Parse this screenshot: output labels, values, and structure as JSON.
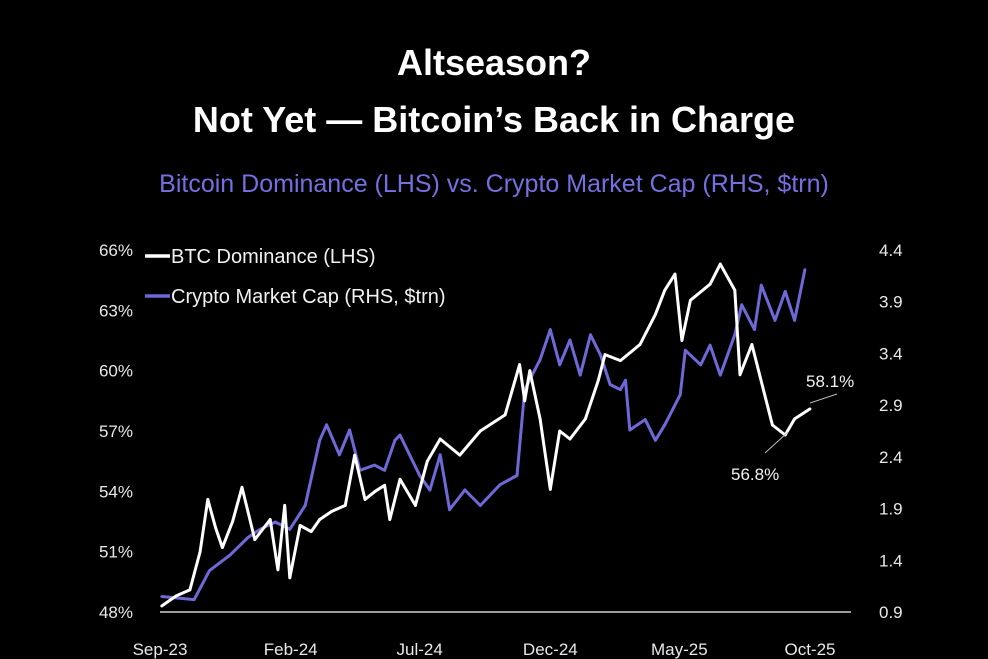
{
  "title_line1": "Altseason?",
  "title_line2": "Not Yet — Bitcoin’s Back in Charge",
  "chart_data": {
    "type": "line",
    "title": "Altseason? Not Yet — Bitcoin’s Back in Charge",
    "subtitle": "Bitcoin Dominance (LHS) vs. Crypto Market Cap (RHS, $trn)",
    "x_ticks": [
      "Sep-23",
      "Feb-24",
      "Jul-24",
      "Dec-24",
      "May-25",
      "Oct-25"
    ],
    "y_left_ticks": [
      "48%",
      "51%",
      "54%",
      "57%",
      "60%",
      "63%",
      "66%"
    ],
    "y_right_ticks": [
      "0.9",
      "1.4",
      "1.9",
      "2.4",
      "2.9",
      "3.4",
      "3.9",
      "4.4"
    ],
    "ylim_left": [
      48,
      66
    ],
    "ylim_right": [
      0.9,
      4.4
    ],
    "xlim": [
      "2023-09-01",
      "2025-10-31"
    ],
    "grid": false,
    "legend_placement": "top-left",
    "colors": {
      "btc_dominance": "#ffffff",
      "market_cap": "#6f69d8"
    },
    "series": [
      {
        "name": "BTC Dominance (LHS)",
        "axis": "left",
        "x": [
          "2023-09-03",
          "2023-09-20",
          "2023-10-06",
          "2023-10-18",
          "2023-10-27",
          "2023-11-05",
          "2023-11-13",
          "2023-11-25",
          "2023-12-06",
          "2023-12-21",
          "2024-01-08",
          "2024-01-17",
          "2024-01-25",
          "2024-01-31",
          "2024-02-12",
          "2024-02-25",
          "2024-03-06",
          "2024-03-20",
          "2024-04-05",
          "2024-04-16",
          "2024-04-28",
          "2024-05-10",
          "2024-05-21",
          "2024-05-27",
          "2024-06-08",
          "2024-06-26",
          "2024-07-10",
          "2024-07-25",
          "2024-08-17",
          "2024-09-10",
          "2024-10-09",
          "2024-10-26",
          "2024-11-01",
          "2024-11-07",
          "2024-11-19",
          "2024-12-01",
          "2024-12-12",
          "2024-12-24",
          "2025-01-11",
          "2025-01-26",
          "2025-02-03",
          "2025-02-21",
          "2025-03-16",
          "2025-04-03",
          "2025-04-14",
          "2025-04-26",
          "2025-05-04",
          "2025-05-14",
          "2025-06-06",
          "2025-06-18",
          "2025-07-05",
          "2025-07-11",
          "2025-07-25",
          "2025-08-09",
          "2025-08-18",
          "2025-09-02",
          "2025-09-13",
          "2025-10-01"
        ],
        "values": [
          48.3,
          48.8,
          49.1,
          51.0,
          53.6,
          52.2,
          51.2,
          52.5,
          54.2,
          51.6,
          52.6,
          50.1,
          53.3,
          49.7,
          52.3,
          52.0,
          52.6,
          53.0,
          53.3,
          55.8,
          53.6,
          54.0,
          54.3,
          52.6,
          54.6,
          53.3,
          55.5,
          56.6,
          55.8,
          57.0,
          57.8,
          60.3,
          58.5,
          60.0,
          57.6,
          54.1,
          57.0,
          56.6,
          57.6,
          59.5,
          60.8,
          60.5,
          61.3,
          62.8,
          64.0,
          64.8,
          61.5,
          63.5,
          64.3,
          65.3,
          64.0,
          59.8,
          61.3,
          58.8,
          57.3,
          56.8,
          57.6,
          58.1
        ]
      },
      {
        "name": "Crypto Market Cap (RHS, $trn)",
        "axis": "right",
        "x": [
          "2023-09-03",
          "2023-10-11",
          "2023-10-29",
          "2023-11-22",
          "2023-12-13",
          "2023-12-27",
          "2024-01-14",
          "2024-01-31",
          "2024-02-18",
          "2024-03-06",
          "2024-03-14",
          "2024-03-29",
          "2024-04-10",
          "2024-04-22",
          "2024-05-09",
          "2024-05-21",
          "2024-06-02",
          "2024-06-08",
          "2024-07-01",
          "2024-07-13",
          "2024-07-25",
          "2024-08-05",
          "2024-08-23",
          "2024-09-10",
          "2024-10-03",
          "2024-10-23",
          "2024-11-01",
          "2024-11-19",
          "2024-12-01",
          "2024-12-12",
          "2024-12-24",
          "2025-01-05",
          "2025-01-17",
          "2025-01-29",
          "2025-02-09",
          "2025-02-21",
          "2025-02-27",
          "2025-03-04",
          "2025-03-22",
          "2025-04-03",
          "2025-04-14",
          "2025-05-02",
          "2025-05-08",
          "2025-05-26",
          "2025-06-06",
          "2025-06-18",
          "2025-07-05",
          "2025-07-13",
          "2025-07-28",
          "2025-08-05",
          "2025-08-21",
          "2025-09-02",
          "2025-09-13",
          "2025-09-25"
        ],
        "values": [
          1.05,
          1.02,
          1.3,
          1.45,
          1.62,
          1.7,
          1.77,
          1.7,
          1.93,
          2.56,
          2.71,
          2.42,
          2.66,
          2.27,
          2.32,
          2.27,
          2.56,
          2.61,
          2.22,
          2.08,
          2.42,
          1.89,
          2.08,
          1.93,
          2.13,
          2.22,
          3.05,
          3.34,
          3.63,
          3.29,
          3.53,
          3.19,
          3.58,
          3.38,
          3.1,
          3.05,
          3.14,
          2.66,
          2.76,
          2.56,
          2.71,
          3.0,
          3.43,
          3.29,
          3.48,
          3.19,
          3.58,
          3.87,
          3.63,
          4.06,
          3.72,
          4.0,
          3.72,
          4.21
        ]
      }
    ],
    "annotations": [
      {
        "text": "58.1%",
        "x": "2025-10-01",
        "y": 58.1
      },
      {
        "text": "56.8%",
        "x": "2025-09-02",
        "y": 56.8
      }
    ]
  }
}
